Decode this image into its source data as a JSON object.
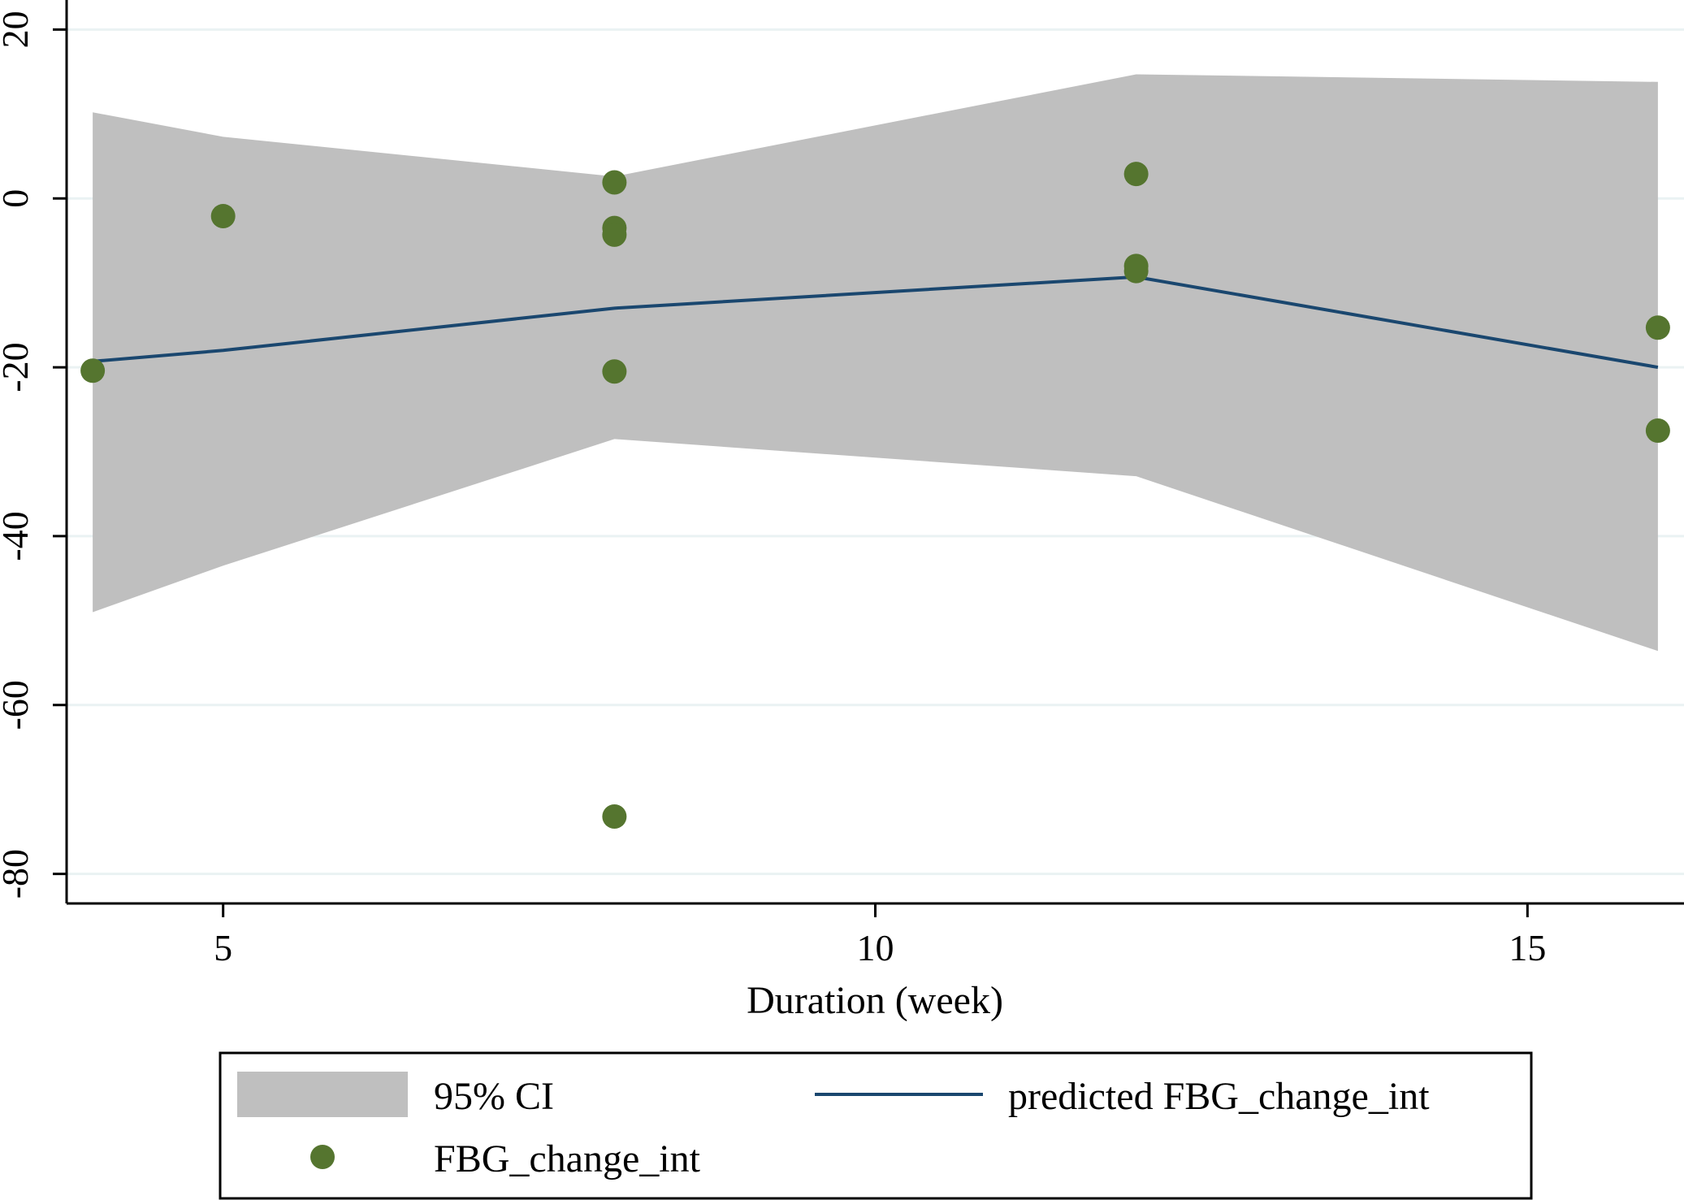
{
  "chart_data": {
    "type": "line",
    "title": "",
    "xlabel": "Duration (week)",
    "ylabel": "",
    "xlim": [
      3.8,
      16.2
    ],
    "ylim": [
      -83.5,
      23.5
    ],
    "x_ticks": [
      5,
      10,
      15
    ],
    "y_ticks": [
      20,
      0,
      -20,
      -40,
      -60,
      -80
    ],
    "x_tick_labels": [
      "5",
      "10",
      "15"
    ],
    "y_tick_labels": [
      "20",
      "0",
      "-20",
      "-40",
      "-60",
      "-80"
    ],
    "grid": true,
    "legend_position": "bottom",
    "colors": {
      "ci_band": "#bfbfbf",
      "prediction_line": "#1a476f",
      "points": "#55752f",
      "grid": "#eaf2f3"
    },
    "ci_band": {
      "name": "95% CI",
      "x": [
        4,
        5,
        8,
        12,
        16
      ],
      "upper": [
        10.2,
        7.3,
        2.6,
        14.7,
        13.8
      ],
      "lower": [
        -49.0,
        -43.5,
        -28.5,
        -32.9,
        -53.6
      ]
    },
    "prediction": {
      "name": "predicted FBG_change_int",
      "x": [
        4,
        5,
        8,
        12,
        16
      ],
      "y": [
        -19.3,
        -18.0,
        -13.0,
        -9.3,
        -20.0
      ]
    },
    "points": {
      "name": "FBG_change_int",
      "x": [
        4,
        5,
        8,
        8,
        8,
        8,
        8,
        12,
        12,
        12,
        16,
        16
      ],
      "y": [
        -20.4,
        -2.1,
        1.9,
        -3.5,
        -4.3,
        -20.5,
        -73.2,
        2.9,
        -8.0,
        -8.6,
        -15.3,
        -27.5
      ]
    }
  }
}
